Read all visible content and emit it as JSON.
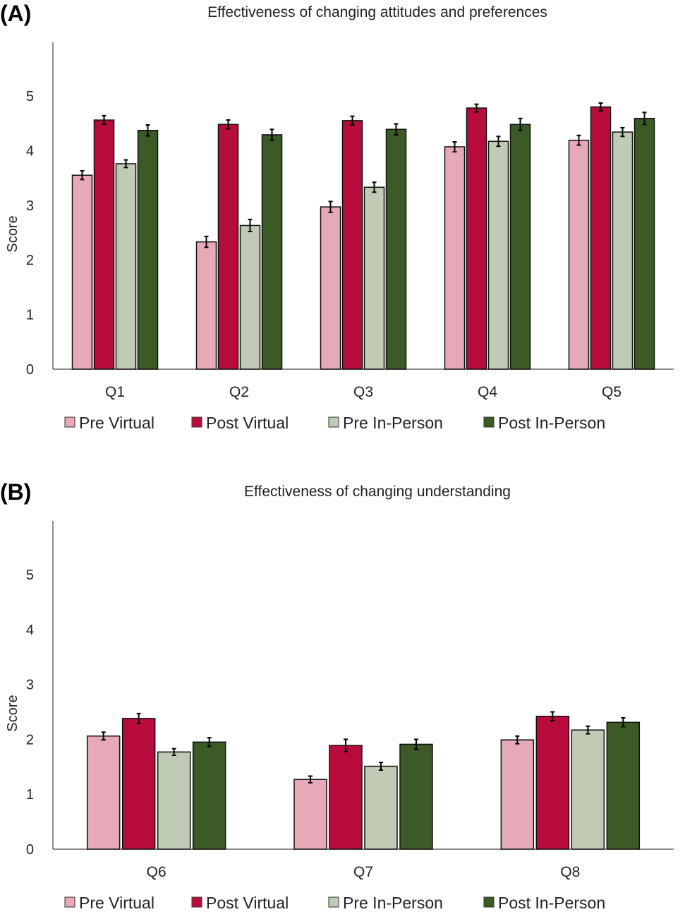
{
  "colors": {
    "Pre Virtual": "#e6a9b7",
    "Post Virtual": "#b80c3c",
    "Pre In-Person": "#c0cbb5",
    "Post In-Person": "#3b5a25"
  },
  "chart_data": [
    {
      "panel_label": "(A)",
      "type": "bar",
      "title": "Effectiveness of changing attitudes and preferences",
      "xlabel": "",
      "ylabel": "Score",
      "ylim": [
        0,
        6
      ],
      "yticks": [
        0,
        1,
        2,
        3,
        4,
        5
      ],
      "grid": false,
      "legend": "bottom",
      "error_bars": true,
      "categories": [
        "Q1",
        "Q2",
        "Q3",
        "Q4",
        "Q5"
      ],
      "series": [
        {
          "name": "Pre Virtual",
          "values": [
            3.55,
            2.33,
            2.97,
            4.07,
            4.19
          ],
          "errors": [
            0.08,
            0.1,
            0.1,
            0.09,
            0.09
          ]
        },
        {
          "name": "Post Virtual",
          "values": [
            4.56,
            4.48,
            4.55,
            4.78,
            4.8
          ],
          "errors": [
            0.08,
            0.08,
            0.08,
            0.07,
            0.07
          ]
        },
        {
          "name": "Pre In-Person",
          "values": [
            3.76,
            2.63,
            3.33,
            4.17,
            4.34
          ],
          "errors": [
            0.07,
            0.11,
            0.09,
            0.09,
            0.08
          ]
        },
        {
          "name": "Post In-Person",
          "values": [
            4.37,
            4.29,
            4.39,
            4.48,
            4.59
          ],
          "errors": [
            0.1,
            0.1,
            0.1,
            0.11,
            0.11
          ]
        }
      ]
    },
    {
      "panel_label": "(B)",
      "type": "bar",
      "title": "Effectiveness of changing understanding",
      "xlabel": "",
      "ylabel": "Score",
      "ylim": [
        0,
        6
      ],
      "yticks": [
        0,
        1,
        2,
        3,
        4,
        5
      ],
      "grid": false,
      "legend": "bottom",
      "error_bars": true,
      "categories": [
        "Q6",
        "Q7",
        "Q8"
      ],
      "series": [
        {
          "name": "Pre Virtual",
          "values": [
            2.06,
            1.27,
            1.99
          ],
          "errors": [
            0.07,
            0.06,
            0.07
          ]
        },
        {
          "name": "Post Virtual",
          "values": [
            2.38,
            1.89,
            2.42
          ],
          "errors": [
            0.09,
            0.11,
            0.08
          ]
        },
        {
          "name": "Pre In-Person",
          "values": [
            1.77,
            1.51,
            2.17
          ],
          "errors": [
            0.06,
            0.07,
            0.07
          ]
        },
        {
          "name": "Post In-Person",
          "values": [
            1.95,
            1.91,
            2.31
          ],
          "errors": [
            0.08,
            0.09,
            0.08
          ]
        }
      ]
    }
  ]
}
